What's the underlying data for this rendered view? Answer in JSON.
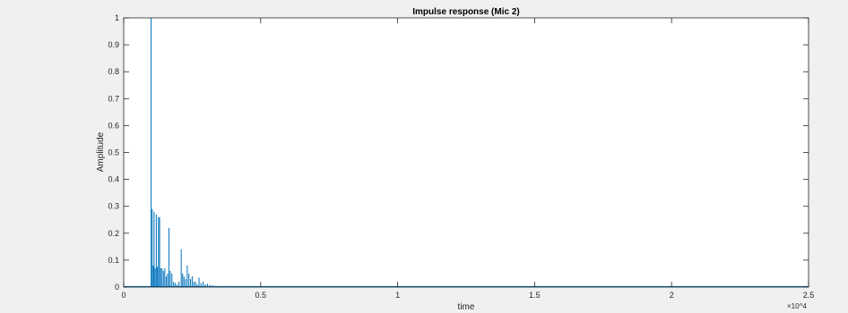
{
  "chart_data": {
    "type": "line",
    "title": "Impulse response (Mic 2)",
    "xlabel": "time",
    "ylabel": "Amplitude",
    "xlim": [
      0,
      25000
    ],
    "ylim": [
      0,
      1
    ],
    "x_exponent_label": "×10^4",
    "x_ticks": [
      0,
      5000,
      10000,
      15000,
      20000,
      25000
    ],
    "x_tick_labels": [
      "0",
      "0.5",
      "1",
      "1.5",
      "2",
      "2.5"
    ],
    "y_ticks": [
      0,
      0.1,
      0.2,
      0.3,
      0.4,
      0.5,
      0.6,
      0.7,
      0.8,
      0.9,
      1
    ],
    "y_tick_labels": [
      "0",
      "0.1",
      "0.2",
      "0.3",
      "0.4",
      "0.5",
      "0.6",
      "0.7",
      "0.8",
      "0.9",
      "1"
    ],
    "grid": false,
    "line_color": "#0072bd",
    "series": [
      {
        "impulses": [
          [
            1000,
            1.0
          ],
          [
            1040,
            0.29
          ],
          [
            1080,
            0.08
          ],
          [
            1110,
            0.28
          ],
          [
            1150,
            0.07
          ],
          [
            1190,
            0.27
          ],
          [
            1230,
            0.075
          ],
          [
            1270,
            0.26
          ],
          [
            1310,
            0.26
          ],
          [
            1350,
            0.07
          ],
          [
            1400,
            0.07
          ],
          [
            1450,
            0.06
          ],
          [
            1500,
            0.07
          ],
          [
            1550,
            0.04
          ],
          [
            1600,
            0.05
          ],
          [
            1650,
            0.22
          ],
          [
            1700,
            0.06
          ],
          [
            1760,
            0.05
          ],
          [
            1820,
            0.02
          ],
          [
            1880,
            0.015
          ],
          [
            1950,
            0.01
          ],
          [
            2020,
            0.02
          ],
          [
            2100,
            0.14
          ],
          [
            2150,
            0.05
          ],
          [
            2200,
            0.04
          ],
          [
            2260,
            0.03
          ],
          [
            2320,
            0.08
          ],
          [
            2380,
            0.05
          ],
          [
            2440,
            0.03
          ],
          [
            2500,
            0.04
          ],
          [
            2560,
            0.02
          ],
          [
            2620,
            0.02
          ],
          [
            2680,
            0.01
          ],
          [
            2750,
            0.035
          ],
          [
            2820,
            0.015
          ],
          [
            2900,
            0.02
          ],
          [
            2980,
            0.01
          ],
          [
            3060,
            0.012
          ],
          [
            3150,
            0.008
          ],
          [
            3250,
            0.006
          ],
          [
            3350,
            0.004
          ],
          [
            3500,
            0.003
          ],
          [
            3700,
            0.004
          ],
          [
            3900,
            0.002
          ],
          [
            4200,
            0.002
          ],
          [
            4600,
            0.001
          ],
          [
            5200,
            0.001
          ]
        ]
      }
    ]
  }
}
